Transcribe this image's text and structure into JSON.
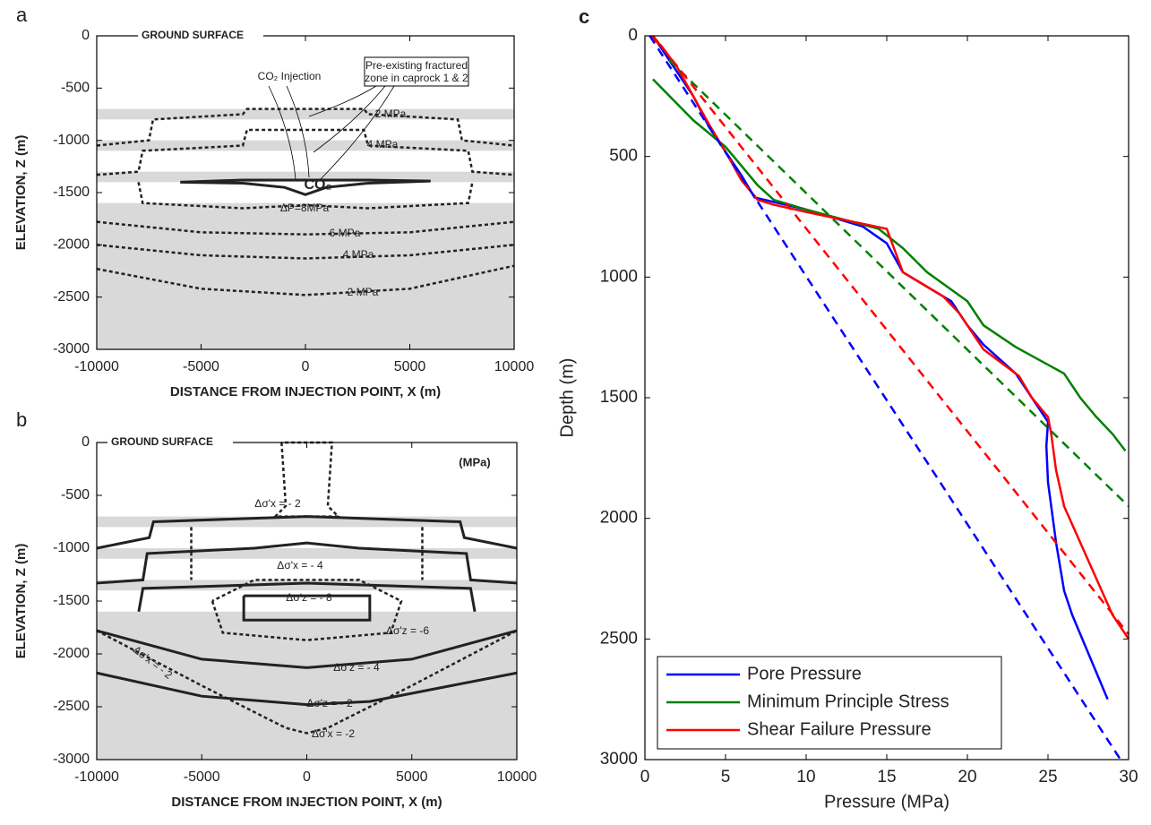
{
  "chart_data": [
    {
      "type": "contour",
      "panel": "a",
      "xlabel": "DISTANCE FROM INJECTION POINT, X (m)",
      "ylabel": "ELEVATION, Z (m)",
      "xlim": [
        -10000,
        10000
      ],
      "ylim": [
        -3000,
        0
      ],
      "xticks": [
        -10000,
        -5000,
        0,
        5000,
        10000
      ],
      "yticks": [
        -3000,
        -2500,
        -2000,
        -1500,
        -1000,
        -500,
        0
      ],
      "bands": [
        [
          -800,
          -700
        ],
        [
          -1100,
          -1000
        ],
        [
          -1400,
          -1300
        ],
        [
          -3000,
          -1600
        ]
      ],
      "band_color": "#d9d9d9",
      "annotations": [
        "GROUND SURFACE",
        "CO₂ Injection",
        "Pre-existing fractured",
        "zone in caprock 1 & 2",
        "2 MPa",
        "4 MPa",
        "CO₂",
        "ΔP=8MPa",
        "6 MPa",
        "4 MPa",
        "2 MPa"
      ],
      "lines": [
        {
          "style": "dashed",
          "x": [
            -10000,
            -7500,
            -7300,
            -3000,
            -2800,
            2800,
            3000,
            7300,
            7500,
            10000
          ],
          "y": [
            -1050,
            -1000,
            -800,
            -750,
            -700,
            -700,
            -750,
            -800,
            -1000,
            -1050
          ]
        },
        {
          "style": "dashed",
          "x": [
            -10000,
            -8000,
            -7800,
            -3000,
            -2800,
            2800,
            3000,
            7800,
            8000,
            10000
          ],
          "y": [
            -1330,
            -1300,
            -1100,
            -1050,
            -900,
            -900,
            -1050,
            -1100,
            -1300,
            -1330
          ]
        },
        {
          "style": "dashed",
          "x": [
            -8000,
            -7800,
            -3000,
            0,
            3000,
            7800,
            8000
          ],
          "y": [
            -1400,
            -1600,
            -1650,
            -1620,
            -1650,
            -1600,
            -1400
          ]
        },
        {
          "style": "dashed",
          "x": [
            -10000,
            -5000,
            0,
            5000,
            10000
          ],
          "y": [
            -1780,
            -1880,
            -1900,
            -1880,
            -1780
          ]
        },
        {
          "style": "dashed",
          "x": [
            -10000,
            -5000,
            0,
            5000,
            10000
          ],
          "y": [
            -2000,
            -2100,
            -2130,
            -2100,
            -2000
          ]
        },
        {
          "style": "dashed",
          "x": [
            -10000,
            -5000,
            0,
            5000,
            10000
          ],
          "y": [
            -2230,
            -2420,
            -2480,
            -2420,
            -2200
          ]
        },
        {
          "style": "solid",
          "x": [
            -6000,
            -3000,
            -1000,
            0,
            1000,
            3000,
            6000,
            3000,
            0,
            -3000,
            -6000
          ],
          "y": [
            -1400,
            -1410,
            -1450,
            -1520,
            -1450,
            -1410,
            -1390,
            -1380,
            -1380,
            -1380,
            -1400
          ]
        }
      ]
    },
    {
      "type": "contour",
      "panel": "b",
      "xlabel": "DISTANCE FROM INJECTION POINT, X (m)",
      "ylabel": "ELEVATION, Z (m)",
      "xlim": [
        -10000,
        10000
      ],
      "ylim": [
        -3000,
        0
      ],
      "xticks": [
        -10000,
        -5000,
        0,
        5000,
        10000
      ],
      "yticks": [
        -3000,
        -2500,
        -2000,
        -1500,
        -1000,
        -500,
        0
      ],
      "bands": [
        [
          -800,
          -700
        ],
        [
          -1100,
          -1000
        ],
        [
          -1400,
          -1300
        ],
        [
          -3000,
          -1600
        ]
      ],
      "band_color": "#d9d9d9",
      "annotations": [
        "GROUND SURFACE",
        "(MPa)",
        "Δσ'x = - 2",
        "Δσ'x = - 4",
        "Δσ'z = - 8",
        "Δσ'z = -6",
        "Δσ'z = - 4",
        "Δσ'z = - 2",
        "Δσ'x = -2",
        "Δσ'x = - 2"
      ],
      "lines": [
        {
          "style": "solid",
          "x": [
            -10000,
            -7500,
            -7300,
            -3000,
            0,
            3000,
            7300,
            7500,
            10000
          ],
          "y": [
            -1000,
            -900,
            -750,
            -720,
            -700,
            -720,
            -750,
            -900,
            -1000
          ]
        },
        {
          "style": "solid",
          "x": [
            -10000,
            -7800,
            -7600,
            -2500,
            0,
            2500,
            7600,
            7800,
            10000
          ],
          "y": [
            -1330,
            -1300,
            -1050,
            -1000,
            -950,
            -1000,
            -1050,
            -1300,
            -1330
          ]
        },
        {
          "style": "solid",
          "x": [
            -8000,
            -7800,
            -3000,
            0,
            3000,
            7800,
            8000
          ],
          "y": [
            -1600,
            -1380,
            -1350,
            -1330,
            -1350,
            -1380,
            -1600
          ]
        },
        {
          "style": "solid",
          "x": [
            -3000,
            -3000,
            3000,
            3000,
            -3000
          ],
          "y": [
            -1450,
            -1680,
            -1680,
            -1450,
            -1450
          ]
        },
        {
          "style": "solid",
          "x": [
            -10000,
            -5000,
            0,
            5000,
            10000
          ],
          "y": [
            -1780,
            -2050,
            -2130,
            -2050,
            -1780
          ]
        },
        {
          "style": "solid",
          "x": [
            -10000,
            -5000,
            0,
            3000,
            10000
          ],
          "y": [
            -2180,
            -2400,
            -2480,
            -2450,
            -2180
          ]
        },
        {
          "style": "dashed",
          "x": [
            -1200,
            -1000,
            -1500,
            1500,
            1000,
            1200,
            -1200
          ],
          "y": [
            0,
            -600,
            -700,
            -700,
            -600,
            0,
            0
          ]
        },
        {
          "style": "dashed",
          "x": [
            -4500,
            -4000,
            0,
            4000,
            4500,
            2500,
            -2500,
            -4500
          ],
          "y": [
            -1500,
            -1800,
            -1870,
            -1800,
            -1500,
            -1300,
            -1300,
            -1500
          ]
        },
        {
          "style": "dashed",
          "x": [
            -10000,
            -5000,
            -3000,
            -1000,
            0,
            1000,
            3000,
            5000,
            10000
          ],
          "y": [
            -1780,
            -2300,
            -2500,
            -2700,
            -2750,
            -2700,
            -2500,
            -2300,
            -1780
          ]
        },
        {
          "style": "dashed",
          "x": [
            -5500,
            -5500
          ],
          "y": [
            -800,
            -1300
          ]
        },
        {
          "style": "dashed",
          "x": [
            5500,
            5500
          ],
          "y": [
            -800,
            -1300
          ]
        }
      ]
    },
    {
      "type": "line",
      "panel": "c",
      "xlabel": "Pressure (MPa)",
      "ylabel": "Depth (m)",
      "xlim": [
        0,
        30
      ],
      "ylim": [
        0,
        3000
      ],
      "y_inverted": true,
      "xticks": [
        0,
        5,
        10,
        15,
        20,
        25,
        30
      ],
      "yticks": [
        0,
        500,
        1000,
        1500,
        2000,
        2500,
        3000
      ],
      "legend": "lower left",
      "series": [
        {
          "name": "Pore Pressure",
          "color": "#0000ff",
          "style": "solid",
          "x": [
            0.5,
            1,
            2,
            3,
            4,
            5,
            6,
            6.8,
            10,
            13.5,
            15,
            16,
            19,
            20,
            21,
            23,
            24,
            25,
            24.9,
            25,
            25.5,
            26,
            26.5,
            28.7
          ],
          "y": [
            0,
            50,
            150,
            250,
            380,
            480,
            580,
            670,
            720,
            790,
            860,
            980,
            1100,
            1200,
            1280,
            1400,
            1500,
            1600,
            1700,
            1850,
            2100,
            2300,
            2400,
            2750
          ]
        },
        {
          "name": "Minimum Principle Stress",
          "color": "#008000",
          "style": "solid",
          "x": [
            0.5,
            3,
            5,
            7,
            8,
            10,
            14.5,
            16,
            17.5,
            20,
            21,
            23,
            26,
            27,
            28,
            29,
            29.8
          ],
          "y": [
            180,
            350,
            460,
            620,
            680,
            720,
            800,
            880,
            980,
            1100,
            1200,
            1290,
            1400,
            1500,
            1580,
            1650,
            1720
          ]
        },
        {
          "name": "Shear Failure Pressure",
          "color": "#ff0000",
          "style": "solid",
          "x": [
            0.3,
            1,
            2,
            3,
            4,
            5,
            6,
            7,
            8,
            10,
            15,
            16,
            18.5,
            19.5,
            20.5,
            21,
            23.2,
            24,
            25,
            25.2,
            25.5,
            26,
            27,
            28,
            29,
            30
          ],
          "y": [
            0,
            40,
            130,
            250,
            370,
            480,
            600,
            680,
            700,
            730,
            800,
            980,
            1080,
            1150,
            1250,
            1300,
            1410,
            1500,
            1580,
            1650,
            1800,
            1950,
            2100,
            2250,
            2400,
            2500
          ]
        },
        {
          "color": "#0000ff",
          "style": "dashed",
          "x": [
            0.3,
            29.5
          ],
          "y": [
            0,
            3000
          ]
        },
        {
          "color": "#008000",
          "style": "dashed",
          "x": [
            1.5,
            30
          ],
          "y": [
            100,
            1950
          ]
        },
        {
          "color": "#ff0000",
          "style": "dashed",
          "x": [
            0.5,
            30
          ],
          "y": [
            0,
            2480
          ]
        }
      ]
    }
  ]
}
